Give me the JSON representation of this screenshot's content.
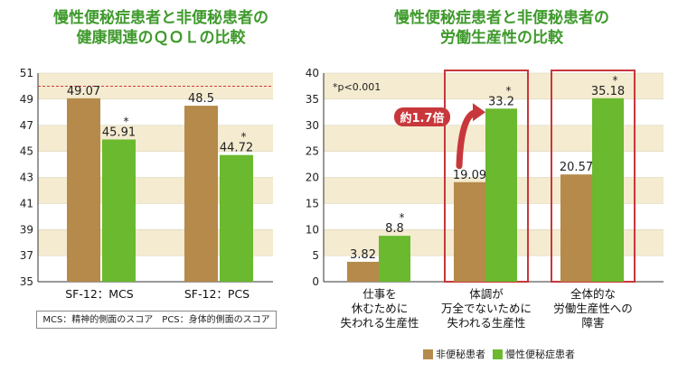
{
  "titles": {
    "left": [
      "慢性便秘症患者と非便秘患者の",
      "健康関連のＱＯＬの比較"
    ],
    "right": [
      "慢性便秘症患者と非便秘患者の",
      "労働生産性の比較"
    ]
  },
  "colors": {
    "non": "#b58a4a",
    "chronic": "#6ab92e",
    "band": "#f4ebd0",
    "band_alt": "#ffffff",
    "title": "#3f9a2c",
    "highlight": "#c8373b",
    "ref_line": "#d0383b"
  },
  "legend": {
    "non": "非便秘患者",
    "chronic": "慢性便秘症患者"
  },
  "note": "MCS：精神的側面のスコア　PCS：身体的側面のスコア",
  "significance": "*p<0.001",
  "ratio_label": "約1.7倍",
  "chart_data": [
    {
      "type": "bar",
      "categories": [
        "SF-12：MCS",
        "SF-12：PCS"
      ],
      "series": [
        {
          "name": "非便秘患者",
          "values": [
            49.07,
            48.5
          ]
        },
        {
          "name": "慢性便秘症患者",
          "values": [
            45.91,
            44.72
          ]
        }
      ],
      "value_labels": [
        [
          "49.07",
          "48.5"
        ],
        [
          "45.91",
          "44.72"
        ]
      ],
      "ylim": [
        35,
        51
      ],
      "yticks": [
        35,
        37,
        39,
        41,
        43,
        45,
        47,
        49,
        51
      ],
      "reference_line": 50,
      "asterisk": [
        false,
        true
      ]
    },
    {
      "type": "bar",
      "categories": [
        [
          "仕事を",
          "休むために",
          "失われる生産性"
        ],
        [
          "体調が",
          "万全でないために",
          "失われる生産性"
        ],
        [
          "全体的な",
          "労働生産性への",
          "障害"
        ]
      ],
      "series": [
        {
          "name": "非便秘患者",
          "values": [
            3.82,
            19.09,
            20.57
          ]
        },
        {
          "name": "慢性便秘症患者",
          "values": [
            8.8,
            33.2,
            35.18
          ]
        }
      ],
      "value_labels": [
        [
          "3.82",
          "19.09",
          "20.57"
        ],
        [
          "8.8",
          "33.2",
          "35.18"
        ]
      ],
      "ylim": [
        0,
        40
      ],
      "yticks": [
        0,
        5,
        10,
        15,
        20,
        25,
        30,
        35,
        40
      ],
      "asterisk": [
        false,
        true
      ],
      "highlight_categories": [
        1,
        2
      ]
    }
  ]
}
